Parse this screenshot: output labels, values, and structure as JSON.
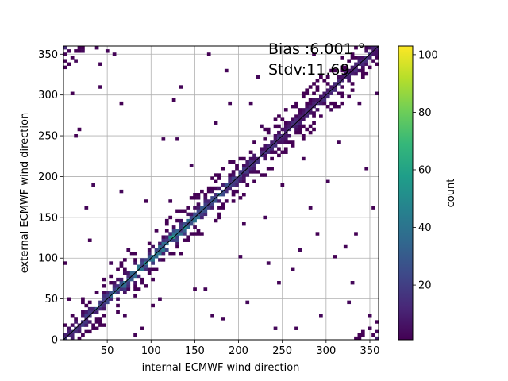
{
  "chart_data": {
    "type": "heatmap",
    "title": "",
    "xlabel": "internal ECMWF wind direction",
    "ylabel": "external ECMWF wind direction",
    "xlim": [
      0,
      360
    ],
    "ylim": [
      0,
      360
    ],
    "xticks": [
      50,
      100,
      150,
      200,
      250,
      300,
      350
    ],
    "yticks": [
      0,
      50,
      100,
      150,
      200,
      250,
      300,
      350
    ],
    "grid": true,
    "bin_size": 4,
    "annotations": {
      "bias": "Bias :6.001 °",
      "stdv": "Stdv:11.69"
    },
    "colorbar": {
      "label": "count",
      "colormap": "viridis",
      "range": [
        1,
        103
      ],
      "ticks": [
        20,
        40,
        60,
        80,
        100
      ]
    },
    "reference_line": {
      "x": [
        0,
        360
      ],
      "y": [
        0,
        360
      ],
      "color": "#000000"
    },
    "outliers": [
      [
        6,
        352
      ],
      [
        14,
        343
      ],
      [
        22,
        354
      ],
      [
        40,
        337
      ],
      [
        38,
        356
      ],
      [
        50,
        352
      ],
      [
        58,
        349
      ],
      [
        42,
        310
      ],
      [
        18,
        258
      ],
      [
        35,
        190
      ],
      [
        10,
        300
      ],
      [
        30,
        120
      ],
      [
        55,
        95
      ],
      [
        65,
        180
      ],
      [
        70,
        30
      ],
      [
        80,
        5
      ],
      [
        90,
        12
      ],
      [
        100,
        42
      ],
      [
        110,
        50
      ],
      [
        120,
        170
      ],
      [
        130,
        245
      ],
      [
        135,
        310
      ],
      [
        145,
        215
      ],
      [
        155,
        175
      ],
      [
        160,
        60
      ],
      [
        170,
        30
      ],
      [
        180,
        25
      ],
      [
        175,
        265
      ],
      [
        190,
        290
      ],
      [
        195,
        205
      ],
      [
        200,
        100
      ],
      [
        205,
        140
      ],
      [
        210,
        45
      ],
      [
        215,
        290
      ],
      [
        225,
        260
      ],
      [
        230,
        150
      ],
      [
        240,
        15
      ],
      [
        245,
        70
      ],
      [
        250,
        190
      ],
      [
        255,
        240
      ],
      [
        260,
        85
      ],
      [
        270,
        110
      ],
      [
        275,
        220
      ],
      [
        280,
        160
      ],
      [
        285,
        350
      ],
      [
        295,
        30
      ],
      [
        300,
        195
      ],
      [
        305,
        280
      ],
      [
        315,
        240
      ],
      [
        320,
        115
      ],
      [
        325,
        45
      ],
      [
        330,
        70
      ],
      [
        335,
        130
      ],
      [
        340,
        5
      ],
      [
        345,
        210
      ],
      [
        350,
        12
      ],
      [
        355,
        340
      ],
      [
        356,
        8
      ],
      [
        348,
        28
      ],
      [
        2,
        95
      ],
      [
        4,
        48
      ],
      [
        8,
        30
      ],
      [
        12,
        250
      ],
      [
        26,
        160
      ],
      [
        66,
        290
      ],
      [
        95,
        170
      ],
      [
        115,
        245
      ],
      [
        140,
        120
      ],
      [
        165,
        350
      ],
      [
        185,
        330
      ],
      [
        220,
        320
      ],
      [
        235,
        95
      ],
      [
        265,
        15
      ],
      [
        290,
        130
      ],
      [
        310,
        100
      ],
      [
        338,
        290
      ],
      [
        352,
        160
      ],
      [
        358,
        300
      ],
      [
        125,
        295
      ],
      [
        148,
        60
      ],
      [
        236,
        230
      ],
      [
        262,
        285
      ],
      [
        318,
        330
      ],
      [
        88,
        68
      ],
      [
        72,
        110
      ]
    ]
  }
}
